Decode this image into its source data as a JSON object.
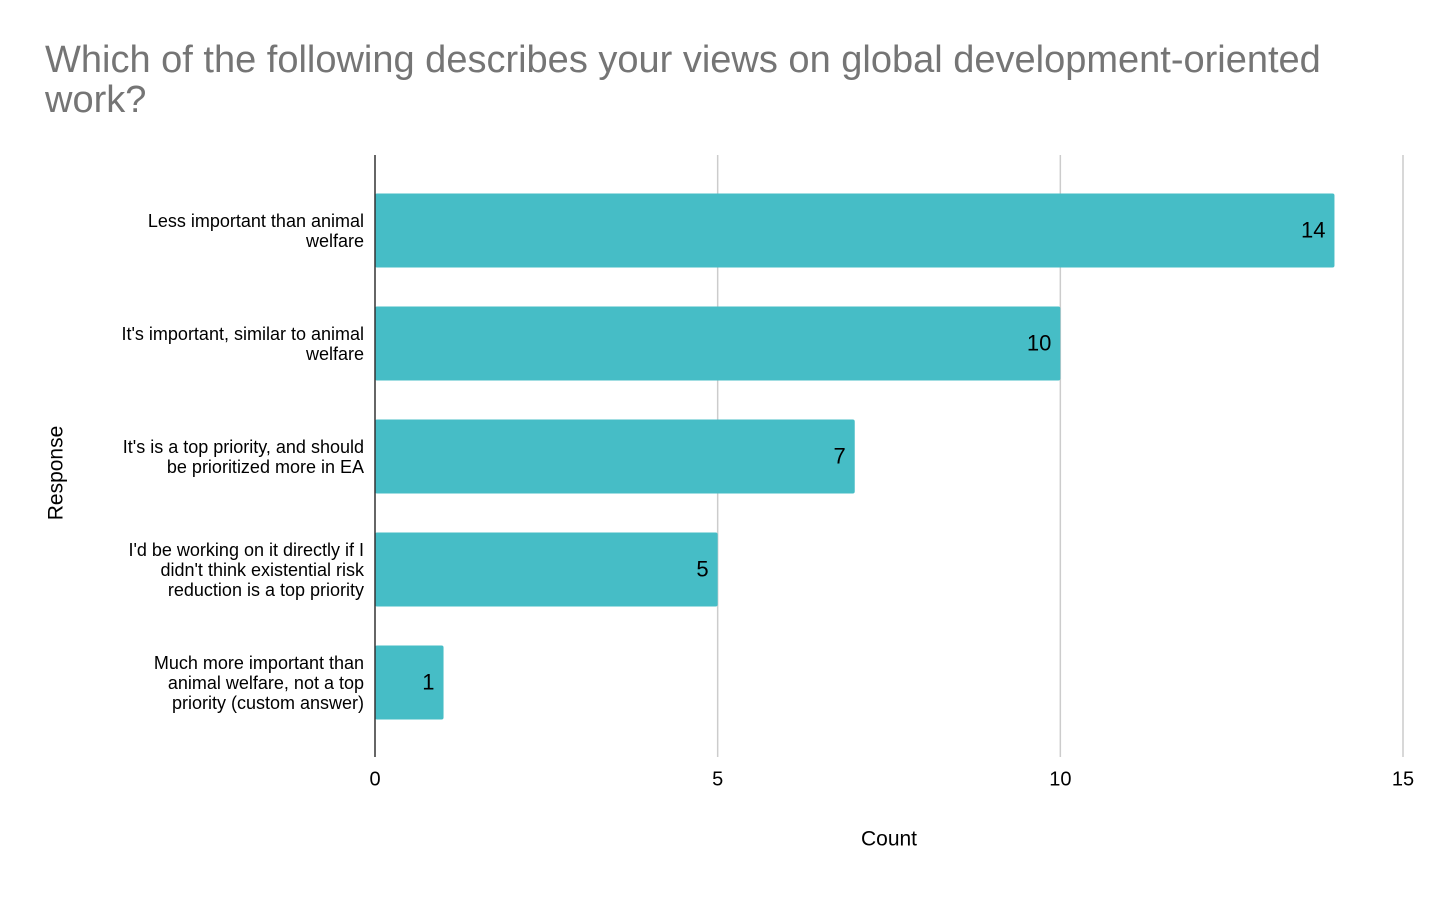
{
  "chart_data": {
    "type": "bar",
    "orientation": "horizontal",
    "title": "Which of the following describes your views on global development-oriented work?",
    "categories": [
      "Less important than animal welfare",
      "It's important, similar to animal welfare",
      "It's is a top priority, and should be prioritized more in EA",
      "I'd be working on it directly if I didn't think existential risk reduction is a top priority",
      "Much more important than animal welfare, not a top priority (custom answer)"
    ],
    "values": [
      14,
      10,
      7,
      5,
      1
    ],
    "color": "#46bdc6",
    "xlim": [
      0,
      15
    ],
    "xticks": [
      0,
      5,
      10,
      15
    ],
    "grid": true,
    "x_label": "Count",
    "y_label": "Response"
  }
}
